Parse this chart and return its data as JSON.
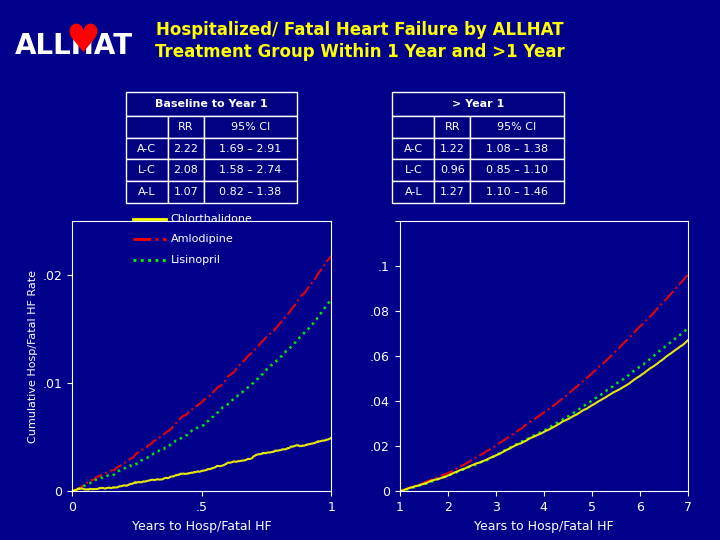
{
  "title": "Hospitalized/ Fatal Heart Failure by ALLHAT\nTreatment Group Within 1 Year and >1 Year",
  "title_color": "#FFFF00",
  "bg_color": "#00008B",
  "plot_bg_color": "#00008B",
  "ylabel": "Cumulative Hosp/Fatal HF Rate",
  "xlabel1": "Years to Hosp/Fatal HF",
  "xlabel2": "Years to Hosp/Fatal HF",
  "table1_title": "Baseline to Year 1",
  "table2_title": "> Year 1",
  "table_headers": [
    "",
    "RR",
    "95% CI"
  ],
  "table1_rows": [
    [
      "A-C",
      "2.22",
      "1.69 – 2.91"
    ],
    [
      "L-C",
      "2.08",
      "1.58 – 2.74"
    ],
    [
      "A-L",
      "1.07",
      "0.82 – 1.38"
    ]
  ],
  "table2_rows": [
    [
      "A-C",
      "1.22",
      "1.08 – 1.38"
    ],
    [
      "L-C",
      "0.96",
      "0.85 – 1.10"
    ],
    [
      "A-L",
      "1.27",
      "1.10 – 1.46"
    ]
  ],
  "legend_items": [
    "Chlorthalidone",
    "Amlodipine",
    "Lisinopril"
  ],
  "legend_colors": [
    "#FFFF00",
    "#FF0000",
    "#00FF00"
  ],
  "legend_styles": [
    "-",
    "-.",
    ":"
  ],
  "plot1_xlim": [
    0,
    1
  ],
  "plot1_ylim": [
    0,
    0.025
  ],
  "plot1_yticks": [
    0,
    0.01,
    0.02
  ],
  "plot1_yticklabels": [
    "0",
    ".01",
    ".02"
  ],
  "plot1_xticks": [
    0,
    0.5,
    1
  ],
  "plot1_xticklabels": [
    "0",
    ".5",
    "1"
  ],
  "plot2_xlim": [
    1,
    7
  ],
  "plot2_ylim": [
    0,
    0.12
  ],
  "plot2_yticks": [
    0,
    0.02,
    0.04,
    0.06,
    0.08,
    0.1,
    0.12
  ],
  "plot2_yticklabels": [
    "0",
    ".02",
    ".04",
    ".06",
    ".08",
    ".1",
    ""
  ],
  "plot2_xticks": [
    1,
    2,
    3,
    4,
    5,
    6,
    7
  ],
  "plot2_xticklabels": [
    "1",
    "2",
    "3",
    "4",
    "5",
    "6",
    "7"
  ],
  "allhat_text": "ALLHAT",
  "heart_color": "#FF0000",
  "tick_color": "#FFFFFF",
  "axes_color": "#FFFFFF",
  "label_color": "#FFFFFF"
}
